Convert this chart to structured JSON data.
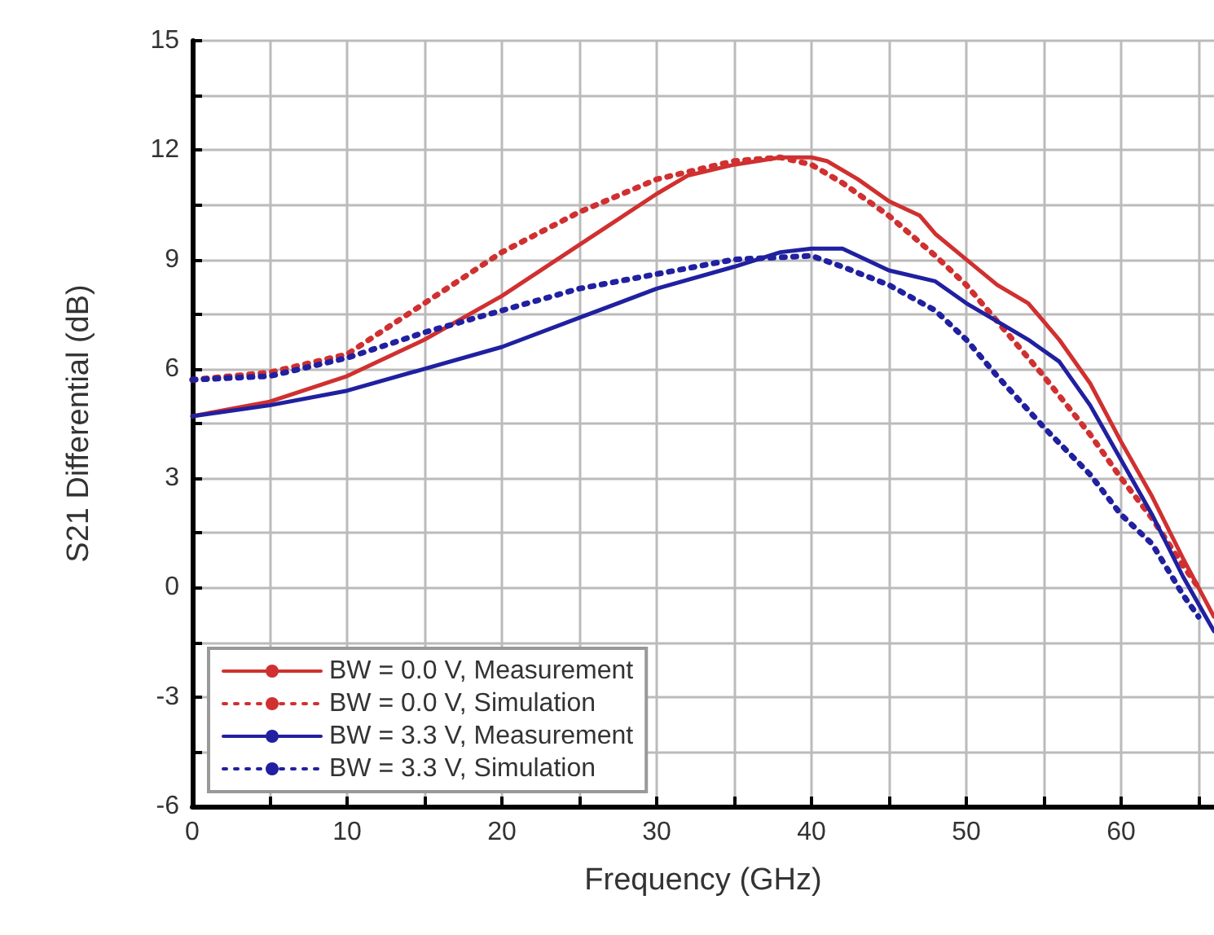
{
  "chart_data": {
    "type": "line",
    "xlabel": "Frequency (GHz)",
    "ylabel": "S21 Differential (dB)",
    "xlim": [
      0,
      66
    ],
    "xticks": [
      0,
      {
        "value": 5,
        "label": null
      },
      10,
      {
        "value": 15,
        "label": null
      },
      20,
      {
        "value": 25,
        "label": null
      },
      30,
      {
        "value": 35,
        "label": null
      },
      40,
      {
        "value": 45,
        "label": null
      },
      50,
      {
        "value": 55,
        "label": null
      },
      60,
      {
        "value": 65,
        "label": null
      }
    ],
    "ylim": [
      -6,
      15
    ],
    "yticks": [
      -6,
      {
        "value": -4.5,
        "label": null
      },
      -3,
      {
        "value": -1.5,
        "label": null
      },
      0,
      {
        "value": 1.5,
        "label": null
      },
      3,
      {
        "value": 4.5,
        "label": null
      },
      6,
      {
        "value": 7.5,
        "label": null
      },
      9,
      {
        "value": 10.5,
        "label": null
      },
      12,
      {
        "value": 13.5,
        "label": null
      },
      15
    ],
    "grid": true,
    "legend": "bottom left",
    "marker": "none",
    "series": [
      {
        "name": "BW = 0.0 V, Measurement",
        "color": "#d03030",
        "line_style": "solid",
        "x": [
          0,
          5,
          10,
          15,
          20,
          25,
          30,
          32,
          35,
          38,
          40,
          41,
          43,
          45,
          47,
          48,
          50,
          52,
          54,
          56,
          58,
          60,
          62,
          64,
          66
        ],
        "values": [
          4.7,
          5.1,
          5.8,
          6.8,
          8.0,
          9.4,
          10.8,
          11.3,
          11.6,
          11.8,
          11.8,
          11.7,
          11.2,
          10.6,
          10.2,
          9.7,
          9.0,
          8.3,
          7.8,
          6.8,
          5.6,
          4.0,
          2.5,
          0.8,
          -0.8
        ]
      },
      {
        "name": "BW = 0.0 V, Simulation",
        "color": "#d03030",
        "line_style": "dotted",
        "x": [
          0,
          5,
          10,
          15,
          20,
          25,
          30,
          35,
          38,
          40,
          42,
          45,
          48,
          50,
          52,
          55,
          58,
          60,
          62,
          64,
          65
        ],
        "values": [
          5.7,
          5.9,
          6.4,
          7.8,
          9.2,
          10.3,
          11.2,
          11.7,
          11.8,
          11.6,
          11.1,
          10.2,
          9.1,
          8.3,
          7.3,
          5.8,
          4.2,
          3.0,
          1.9,
          0.6,
          0.0
        ]
      },
      {
        "name": "BW = 3.3 V, Measurement",
        "color": "#2020a0",
        "line_style": "solid",
        "x": [
          0,
          5,
          10,
          15,
          20,
          25,
          30,
          35,
          38,
          40,
          42,
          45,
          48,
          50,
          52,
          54,
          56,
          58,
          60,
          62,
          64,
          66
        ],
        "values": [
          4.7,
          5.0,
          5.4,
          6.0,
          6.6,
          7.4,
          8.2,
          8.8,
          9.2,
          9.3,
          9.3,
          8.7,
          8.4,
          7.8,
          7.3,
          6.8,
          6.2,
          5.0,
          3.5,
          2.0,
          0.3,
          -1.2
        ]
      },
      {
        "name": "BW = 3.3 V, Simulation",
        "color": "#2020a0",
        "line_style": "dotted",
        "x": [
          0,
          5,
          10,
          15,
          20,
          25,
          30,
          35,
          40,
          42,
          45,
          48,
          50,
          52,
          55,
          58,
          60,
          62,
          64,
          65
        ],
        "values": [
          5.7,
          5.8,
          6.3,
          7.0,
          7.6,
          8.2,
          8.6,
          9.0,
          9.1,
          8.8,
          8.3,
          7.6,
          6.8,
          5.8,
          4.4,
          3.1,
          2.0,
          1.2,
          -0.2,
          -0.8
        ]
      }
    ]
  }
}
